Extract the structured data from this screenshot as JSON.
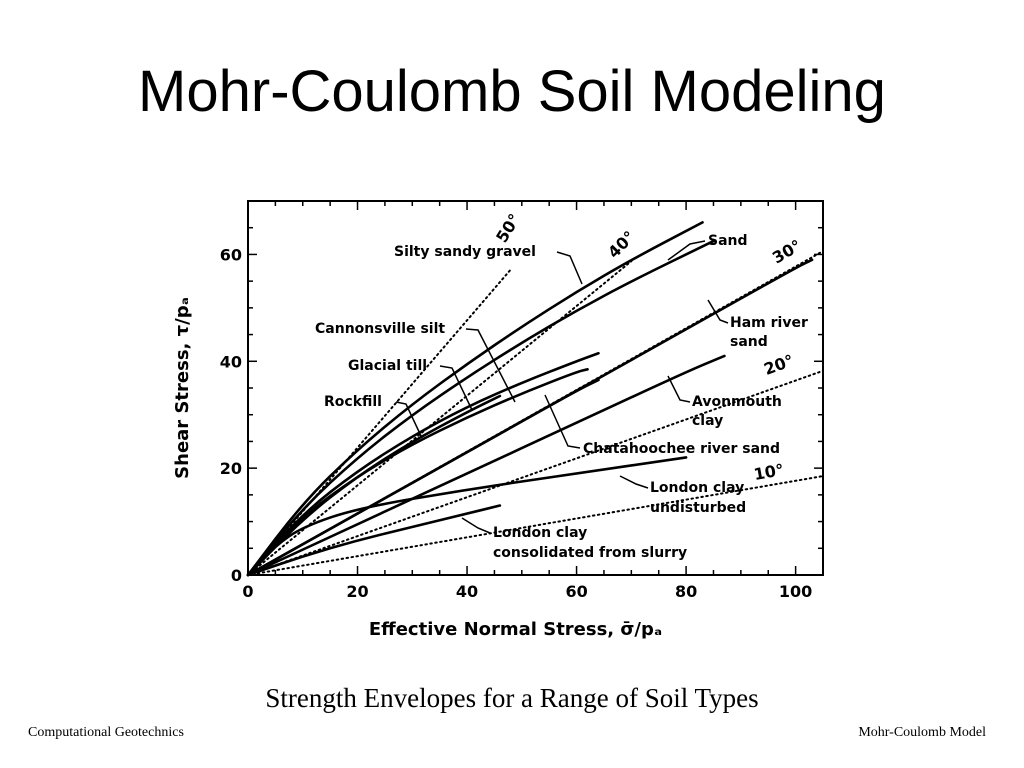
{
  "slide": {
    "title": "Mohr-Coulomb Soil Modeling",
    "caption": "Strength Envelopes for a Range of Soil Types",
    "footer_left": "Computational Geotechnics",
    "footer_right": "Mohr-Coulomb Model"
  },
  "chart_data": {
    "type": "line",
    "xlabel": "Effective Normal Stress, σ̄/pₐ",
    "ylabel": "Shear Stress, τ/pₐ",
    "xlim": [
      0,
      105
    ],
    "ylim": [
      0,
      70
    ],
    "xticks": [
      0,
      20,
      40,
      60,
      80,
      100
    ],
    "yticks": [
      0,
      20,
      40,
      60
    ],
    "grid": false,
    "reference_lines": [
      {
        "name": "50°",
        "angle": 50
      },
      {
        "name": "40°",
        "angle": 40
      },
      {
        "name": "30°",
        "angle": 30
      },
      {
        "name": "20°",
        "angle": 20
      },
      {
        "name": "10°",
        "angle": 10
      }
    ],
    "series": [
      {
        "name": "Silty sandy gravel",
        "x": [
          0,
          10,
          20,
          30,
          40,
          50,
          60,
          70,
          83
        ],
        "y": [
          0,
          13.5,
          23.5,
          32,
          39.5,
          46.5,
          53,
          59,
          66
        ]
      },
      {
        "name": "Sand",
        "x": [
          0,
          10,
          20,
          30,
          40,
          50,
          60,
          70,
          85
        ],
        "y": [
          0,
          12.5,
          22,
          30,
          37,
          43.5,
          49.5,
          55,
          62.5
        ]
      },
      {
        "name": "Cannonsville silt",
        "x": [
          0,
          10,
          20,
          30,
          40,
          50,
          60,
          64
        ],
        "y": [
          0,
          11.5,
          19.5,
          26,
          31.5,
          36,
          40,
          41.5
        ]
      },
      {
        "name": "Glacial till",
        "x": [
          0,
          10,
          20,
          30,
          40,
          46
        ],
        "y": [
          0,
          10.5,
          18.5,
          25,
          30.5,
          33.5
        ]
      },
      {
        "name": "Rockfill",
        "x": [
          0,
          10,
          20,
          30,
          40,
          50,
          60,
          62
        ],
        "y": [
          0,
          11,
          18.5,
          24.5,
          29.5,
          34,
          38,
          38.5
        ]
      },
      {
        "name": "Ham river sand",
        "x": [
          0,
          20,
          40,
          60,
          80,
          100,
          103
        ],
        "y": [
          0,
          11.5,
          23,
          34.5,
          46,
          57.5,
          59
        ]
      },
      {
        "name": "Chatahoochee river sand",
        "x": [
          0,
          20,
          40,
          60,
          64
        ],
        "y": [
          0,
          11.5,
          23,
          34.5,
          36.5
        ]
      },
      {
        "name": "Avonmouth clay",
        "x": [
          0,
          20,
          40,
          60,
          80,
          87
        ],
        "y": [
          0,
          9.5,
          19,
          28.5,
          38,
          41
        ]
      },
      {
        "name": "London clay undisturbed",
        "x": [
          0,
          5,
          10,
          20,
          40,
          60,
          80
        ],
        "y": [
          0,
          5.5,
          9,
          12.5,
          16,
          19,
          22
        ]
      },
      {
        "name": "London clay consolidated from slurry",
        "x": [
          0,
          10,
          20,
          30,
          40,
          46
        ],
        "y": [
          0,
          3.5,
          6.5,
          9,
          11.5,
          13
        ]
      }
    ],
    "labels": {
      "silty_sandy_gravel": "Silty sandy gravel",
      "sand": "Sand",
      "cannonsville_silt": "Cannonsville silt",
      "glacial_till": "Glacial till",
      "rockfill": "Rockfill",
      "ham_river_sand_1": "Ham river",
      "ham_river_sand_2": "sand",
      "avonmouth_clay_1": "Avonmouth",
      "avonmouth_clay_2": "clay",
      "chatahoochee": "Chatahoochee river sand",
      "london_undisturbed_1": "London clay",
      "london_undisturbed_2": "undisturbed",
      "london_slurry_1": "London clay",
      "london_slurry_2": "consolidated from slurry"
    }
  }
}
